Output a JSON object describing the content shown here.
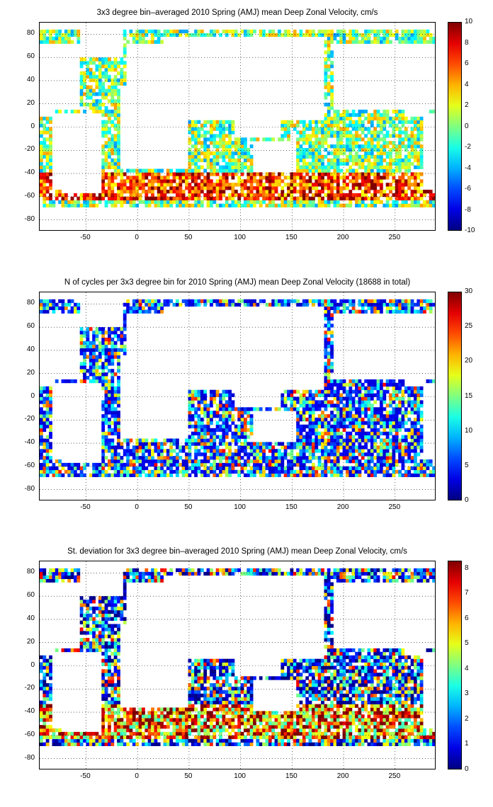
{
  "chart_data": [
    {
      "type": "heatmap",
      "title": "3x3 degree bin–averaged 2010 Spring (AMJ) mean Deep Zonal Velocity, cm/s",
      "x_ticks": [
        "-50",
        "0",
        "50",
        "100",
        "150",
        "200",
        "250"
      ],
      "y_ticks": [
        "80",
        "60",
        "40",
        "20",
        "0",
        "-20",
        "-40",
        "-60",
        "-80"
      ],
      "xlim": [
        -95,
        290
      ],
      "ylim": [
        -90,
        90
      ],
      "bin_size_deg": 3,
      "colorbar_ticks": [
        "10",
        "8",
        "6",
        "4",
        "2",
        "0",
        "-2",
        "-4",
        "-6",
        "-8",
        "-10"
      ],
      "colorbar_range": [
        -10,
        10
      ],
      "colormap": "jet",
      "grid": true
    },
    {
      "type": "heatmap",
      "title": "N of cycles per 3x3 degree bin for 2010 Spring (AMJ) mean Deep Zonal Velocity (18688 in total)",
      "x_ticks": [
        "-50",
        "0",
        "50",
        "100",
        "150",
        "200",
        "250"
      ],
      "y_ticks": [
        "80",
        "60",
        "40",
        "20",
        "0",
        "-20",
        "-40",
        "-60",
        "-80"
      ],
      "xlim": [
        -95,
        290
      ],
      "ylim": [
        -90,
        90
      ],
      "bin_size_deg": 3,
      "colorbar_ticks": [
        "30",
        "25",
        "20",
        "15",
        "10",
        "5",
        "0"
      ],
      "colorbar_range": [
        0,
        30
      ],
      "colormap": "jet",
      "grid": true
    },
    {
      "type": "heatmap",
      "title": "St. deviation for 3x3 degree bin–averaged 2010 Spring (AMJ) mean Deep Zonal Velocity, cm/s",
      "x_ticks": [
        "-50",
        "0",
        "50",
        "100",
        "150",
        "200",
        "250"
      ],
      "y_ticks": [
        "80",
        "60",
        "40",
        "20",
        "0",
        "-20",
        "-40",
        "-60",
        "-80"
      ],
      "xlim": [
        -95,
        290
      ],
      "ylim": [
        -90,
        90
      ],
      "bin_size_deg": 3,
      "colorbar_ticks": [
        "8",
        "7",
        "6",
        "5",
        "4",
        "3",
        "2",
        "1",
        "0"
      ],
      "colorbar_range": [
        0,
        8.3
      ],
      "colormap": "jet",
      "grid": true
    }
  ]
}
